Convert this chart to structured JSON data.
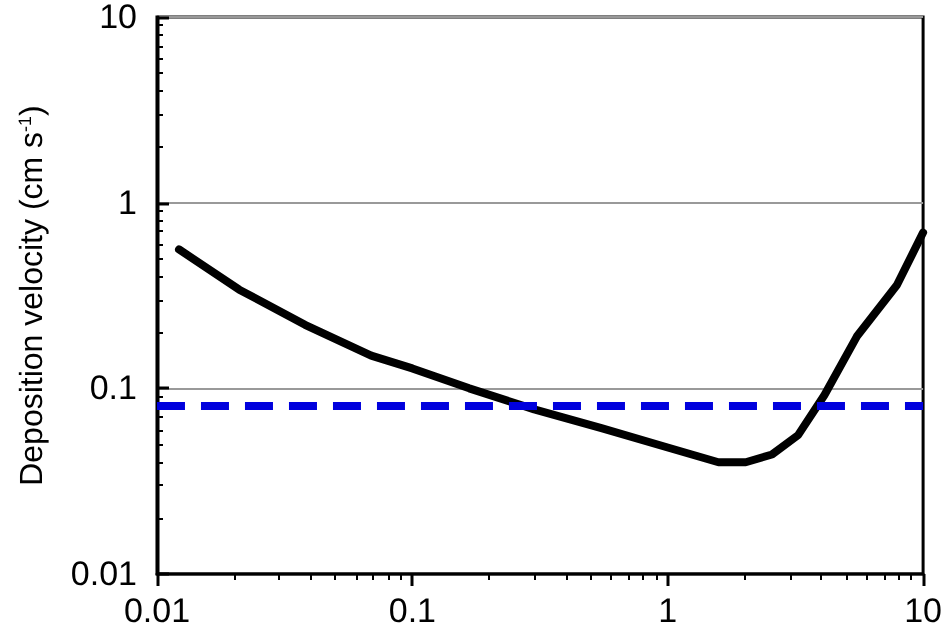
{
  "chart_data": {
    "type": "line",
    "ylabel": "Deposition velocity (cm s$^{-1}$)",
    "log": "xy",
    "grid": "y",
    "marker": "none",
    "line_style": "solid",
    "xlim": [
      0.01,
      10
    ],
    "xticks": [
      0.01,
      0.1,
      1,
      10
    ],
    "ylim": [
      0.01,
      10
    ],
    "yticks": [
      0.01,
      0.1,
      1,
      10
    ],
    "series": [
      {
        "color": "#000000",
        "x": [
          0.0122,
          0.021,
          0.038,
          0.069,
          0.1,
          0.167,
          0.3,
          0.55,
          1,
          1.58,
          2.02,
          2.56,
          3.24,
          4.11,
          5.5,
          7.9,
          10
        ],
        "values": [
          0.56,
          0.34,
          0.22,
          0.15,
          0.128,
          0.1,
          0.077,
          0.061,
          0.048,
          0.04,
          0.04,
          0.044,
          0.056,
          0.092,
          0.19,
          0.36,
          0.69
        ]
      }
    ],
    "ref_lines": [
      {
        "axis": "y",
        "value": 0.083,
        "color": "#0000dd",
        "line_style": "dashed"
      }
    ]
  }
}
